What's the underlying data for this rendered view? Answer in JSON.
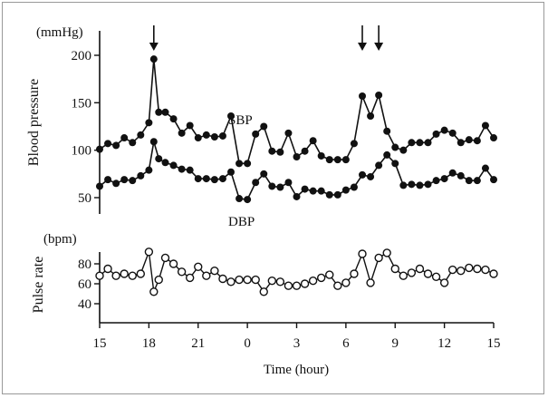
{
  "chart_data": [
    {
      "type": "line",
      "panel": "blood-pressure",
      "ylabel": "Blood pressure",
      "unit_label": "(mmHg)",
      "ylim": [
        30,
        210
      ],
      "yticks": [
        50,
        100,
        150,
        200
      ],
      "x_hours_elapsed_from_15h": [
        0,
        0.5,
        1,
        1.5,
        2,
        2.5,
        3,
        3.3,
        3.6,
        4,
        4.5,
        5,
        5.5,
        6,
        6.5,
        7,
        7.5,
        8,
        8.5,
        9,
        9.5,
        10,
        10.5,
        11,
        11.5,
        12,
        12.5,
        13,
        13.5,
        14,
        14.5,
        15,
        15.5,
        16,
        16.5,
        17,
        17.5,
        18,
        18.5,
        19,
        19.5,
        20,
        20.5,
        21,
        21.5,
        22,
        22.5,
        23,
        23.5,
        24
      ],
      "series": [
        {
          "name": "SBP",
          "label": "SBP",
          "marker": "filled-circle",
          "values": [
            101,
            107,
            105,
            113,
            108,
            116,
            129,
            196,
            140,
            140,
            133,
            118,
            126,
            113,
            116,
            114,
            115,
            136,
            86,
            86,
            117,
            125,
            99,
            98,
            118,
            93,
            99,
            110,
            94,
            90,
            90,
            90,
            107,
            157,
            136,
            158,
            120,
            103,
            100,
            108,
            108,
            108,
            117,
            121,
            118,
            108,
            111,
            110,
            126,
            113
          ]
        },
        {
          "name": "DBP",
          "label": "DBP",
          "marker": "filled-circle",
          "values": [
            62,
            69,
            65,
            69,
            68,
            73,
            79,
            109,
            91,
            87,
            84,
            80,
            79,
            70,
            70,
            69,
            70,
            77,
            49,
            48,
            66,
            75,
            62,
            61,
            66,
            51,
            59,
            57,
            57,
            53,
            53,
            58,
            61,
            74,
            72,
            84,
            95,
            86,
            63,
            64,
            63,
            64,
            68,
            70,
            76,
            73,
            68,
            68,
            81,
            69
          ]
        }
      ],
      "annotations": [
        {
          "type": "arrow",
          "x_hours_elapsed_from_15h": 3.3,
          "direction": "down"
        },
        {
          "type": "arrow",
          "x_hours_elapsed_from_15h": 16,
          "direction": "down"
        },
        {
          "type": "arrow",
          "x_hours_elapsed_from_15h": 17,
          "direction": "down"
        }
      ]
    },
    {
      "type": "line",
      "panel": "pulse-rate",
      "ylabel": "Pulse rate",
      "unit_label": "(bpm)",
      "ylim": [
        25,
        100
      ],
      "yticks": [
        40,
        60,
        80
      ],
      "series": [
        {
          "name": "Pulse rate",
          "marker": "open-circle",
          "x_hours_elapsed_from_15h": [
            0,
            0.5,
            1,
            1.5,
            2,
            2.5,
            3,
            3.3,
            3.6,
            4,
            4.5,
            5,
            5.5,
            6,
            6.5,
            7,
            7.5,
            8,
            8.5,
            9,
            9.5,
            10,
            10.5,
            11,
            11.5,
            12,
            12.5,
            13,
            13.5,
            14,
            14.5,
            15,
            15.5,
            16,
            16.5,
            17,
            17.5,
            18,
            18.5,
            19,
            19.5,
            20,
            20.5,
            21,
            21.5,
            22,
            22.5,
            23,
            23.5,
            24
          ],
          "values": [
            68,
            75,
            68,
            70,
            68,
            70,
            92,
            52,
            64,
            86,
            80,
            72,
            66,
            77,
            68,
            73,
            65,
            62,
            64,
            64,
            64,
            52,
            63,
            62,
            58,
            58,
            60,
            63,
            66,
            69,
            58,
            61,
            70,
            90,
            61,
            86,
            91,
            75,
            68,
            71,
            75,
            70,
            67,
            61,
            74,
            73,
            76,
            75,
            74,
            70
          ]
        }
      ]
    }
  ],
  "x_axis": {
    "label": "Time (hour)",
    "range_hours_elapsed": [
      0,
      24
    ],
    "tick_labels": [
      "15",
      "18",
      "21",
      "0",
      "3",
      "6",
      "9",
      "12",
      "15"
    ],
    "tick_hours_elapsed": [
      0,
      3,
      6,
      9,
      12,
      15,
      18,
      21,
      24
    ]
  }
}
